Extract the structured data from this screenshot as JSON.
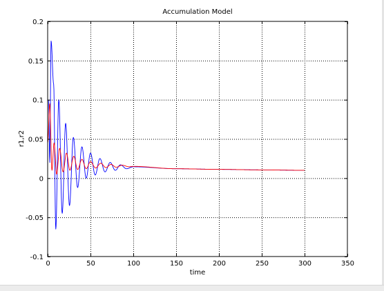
{
  "chart_data": {
    "type": "line",
    "title": "Accumulation Model",
    "xlabel": "time",
    "ylabel": "r1,r2",
    "xlim": [
      0,
      350
    ],
    "ylim": [
      -0.1,
      0.2
    ],
    "xticks": [
      0,
      50,
      100,
      150,
      200,
      250,
      300,
      350
    ],
    "xtick_labels": [
      "0",
      "50",
      "100",
      "150",
      "200",
      "250",
      "300",
      "350"
    ],
    "yticks": [
      -0.1,
      -0.05,
      0,
      0.05,
      0.1,
      0.15,
      0.2
    ],
    "ytick_labels": [
      "-0.1",
      "-0.05",
      "0",
      "0.05",
      "0.1",
      "0.15",
      "0.2"
    ],
    "grid": true,
    "grid_style": "dotted",
    "colors": {
      "r1": "#0000ff",
      "r2": "#ff0000",
      "axes": "#000000",
      "grid": "#000000"
    },
    "series": [
      {
        "color": "#0000ff",
        "model": "damped_oscillation",
        "x_range": [
          0,
          300
        ],
        "mean_start": 0.055,
        "mean_end": 0.01,
        "mean_decay_scale": 120,
        "peaks": [
          {
            "x": 1,
            "y": 0.1
          },
          {
            "x": 2.5,
            "y": 0.02
          },
          {
            "x": 4,
            "y": 0.175
          },
          {
            "x": 7,
            "y": 0.12
          },
          {
            "x": 9.5,
            "y": -0.065
          },
          {
            "x": 13,
            "y": 0.1
          },
          {
            "x": 17,
            "y": -0.045
          },
          {
            "x": 21,
            "y": 0.07
          },
          {
            "x": 25.5,
            "y": -0.035
          },
          {
            "x": 30,
            "y": 0.052
          },
          {
            "x": 35,
            "y": -0.012
          },
          {
            "x": 40,
            "y": 0.04
          },
          {
            "x": 45,
            "y": 0.0
          },
          {
            "x": 50,
            "y": 0.032
          },
          {
            "x": 55.5,
            "y": 0.004
          },
          {
            "x": 61,
            "y": 0.025
          },
          {
            "x": 67,
            "y": 0.008
          },
          {
            "x": 73,
            "y": 0.02
          },
          {
            "x": 79,
            "y": 0.01
          },
          {
            "x": 85,
            "y": 0.017
          },
          {
            "x": 92,
            "y": 0.012
          },
          {
            "x": 100,
            "y": 0.0145
          },
          {
            "x": 150,
            "y": 0.012
          },
          {
            "x": 200,
            "y": 0.0112
          },
          {
            "x": 250,
            "y": 0.0105
          },
          {
            "x": 300,
            "y": 0.01
          }
        ]
      },
      {
        "color": "#ff0000",
        "model": "damped_oscillation",
        "x_range": [
          0,
          300
        ],
        "peaks": [
          {
            "x": 0,
            "y": 0.045
          },
          {
            "x": 2.5,
            "y": 0.095
          },
          {
            "x": 5,
            "y": 0.01
          },
          {
            "x": 7.5,
            "y": 0.045
          },
          {
            "x": 10.5,
            "y": 0.005
          },
          {
            "x": 14,
            "y": 0.038
          },
          {
            "x": 18,
            "y": 0.008
          },
          {
            "x": 22,
            "y": 0.032
          },
          {
            "x": 26,
            "y": 0.01
          },
          {
            "x": 30.5,
            "y": 0.028
          },
          {
            "x": 35,
            "y": 0.011
          },
          {
            "x": 40,
            "y": 0.024
          },
          {
            "x": 45,
            "y": 0.012
          },
          {
            "x": 50,
            "y": 0.021
          },
          {
            "x": 56,
            "y": 0.013
          },
          {
            "x": 62,
            "y": 0.019
          },
          {
            "x": 68,
            "y": 0.0135
          },
          {
            "x": 74,
            "y": 0.0175
          },
          {
            "x": 80,
            "y": 0.014
          },
          {
            "x": 87,
            "y": 0.0165
          },
          {
            "x": 95,
            "y": 0.0145
          },
          {
            "x": 100,
            "y": 0.015
          },
          {
            "x": 150,
            "y": 0.012
          },
          {
            "x": 200,
            "y": 0.0112
          },
          {
            "x": 250,
            "y": 0.0105
          },
          {
            "x": 300,
            "y": 0.01
          }
        ]
      }
    ]
  }
}
